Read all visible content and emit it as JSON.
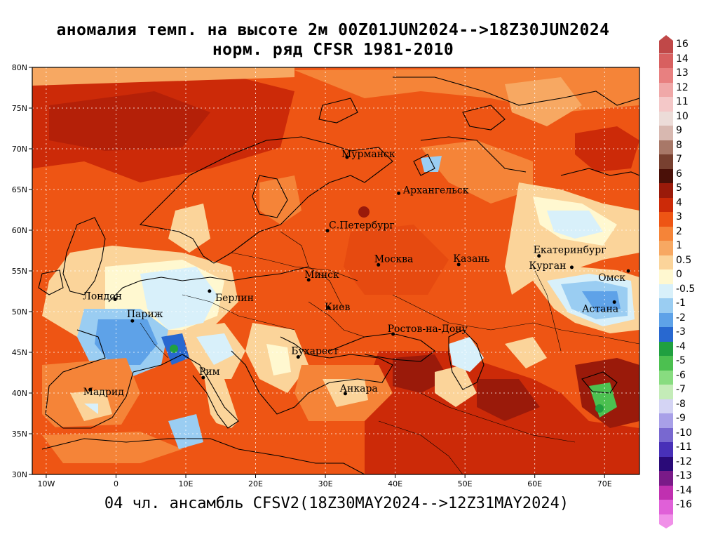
{
  "title": {
    "line1": "аномалия темп. на высоте 2м 00Z01JUN2024-->18Z30JUN2024",
    "line2": "норм. ряд CFSR 1981-2010"
  },
  "footer": "04 чл. ансамбль CFSV2(18Z30MAY2024-->12Z31MAY2024)",
  "map": {
    "lon_range": [
      -12,
      75
    ],
    "lat_range": [
      30,
      80
    ],
    "lon_ticks": [
      "10W",
      "0",
      "10E",
      "20E",
      "30E",
      "40E",
      "50E",
      "60E",
      "70E"
    ],
    "lat_ticks": [
      "30N",
      "35N",
      "40N",
      "45N",
      "50N",
      "55N",
      "60N",
      "65N",
      "70N",
      "75N",
      "80N"
    ],
    "grid": true
  },
  "cities": [
    {
      "name": "Мурманск",
      "lon": 33.1,
      "lat": 68.97
    },
    {
      "name": "Архангельск",
      "lon": 40.5,
      "lat": 64.54
    },
    {
      "name": "С.Петербург",
      "lon": 30.3,
      "lat": 59.94
    },
    {
      "name": "Москва",
      "lon": 37.6,
      "lat": 55.75
    },
    {
      "name": "Казань",
      "lon": 49.1,
      "lat": 55.79
    },
    {
      "name": "Екатеринбург",
      "lon": 60.6,
      "lat": 56.84
    },
    {
      "name": "Курган",
      "lon": 65.3,
      "lat": 55.44
    },
    {
      "name": "Омск",
      "lon": 73.4,
      "lat": 54.99
    },
    {
      "name": "Астана",
      "lon": 71.4,
      "lat": 51.17
    },
    {
      "name": "Минск",
      "lon": 27.6,
      "lat": 53.9
    },
    {
      "name": "Киев",
      "lon": 30.5,
      "lat": 50.45
    },
    {
      "name": "Берлин",
      "lon": 13.4,
      "lat": 52.52
    },
    {
      "name": "Лондон",
      "lon": -0.13,
      "lat": 51.51
    },
    {
      "name": "Париж",
      "lon": 2.35,
      "lat": 48.86
    },
    {
      "name": "Ростов-на-Дону",
      "lon": 39.7,
      "lat": 47.24
    },
    {
      "name": "Бухарест",
      "lon": 26.1,
      "lat": 44.43
    },
    {
      "name": "Рим",
      "lon": 12.5,
      "lat": 41.9
    },
    {
      "name": "Мадрид",
      "lon": -3.7,
      "lat": 40.42
    },
    {
      "name": "Анкара",
      "lon": 32.85,
      "lat": 39.93
    }
  ],
  "colorbar": {
    "levels": [
      "16",
      "14",
      "13",
      "12",
      "11",
      "10",
      "9",
      "8",
      "7",
      "6",
      "5",
      "4",
      "3",
      "2",
      "1",
      "0.5",
      "0",
      "-0.5",
      "-1",
      "-2",
      "-3",
      "-4",
      "-5",
      "-6",
      "-7",
      "-8",
      "-9",
      "-10",
      "-11",
      "-12",
      "-13",
      "-14",
      "-16"
    ],
    "colors": [
      "#c04848",
      "#d86060",
      "#e88080",
      "#f0a8a8",
      "#f4c8c8",
      "#ecdcd8",
      "#d8b8b0",
      "#a87868",
      "#784030",
      "#4a1008",
      "#9a1a0a",
      "#cc2a08",
      "#ee5514",
      "#f58438",
      "#f7a862",
      "#fbd49a",
      "#fff8d0",
      "#d8f0fa",
      "#9acdf2",
      "#5ea2e8",
      "#2868d0",
      "#20a040",
      "#4cc050",
      "#88dc80",
      "#c4ecb8",
      "#d4d4f4",
      "#a8a0e8",
      "#7868d0",
      "#4830b8",
      "#2a0a78",
      "#7a1a88",
      "#c030b0",
      "#e060d8",
      "#f090e8"
    ]
  }
}
